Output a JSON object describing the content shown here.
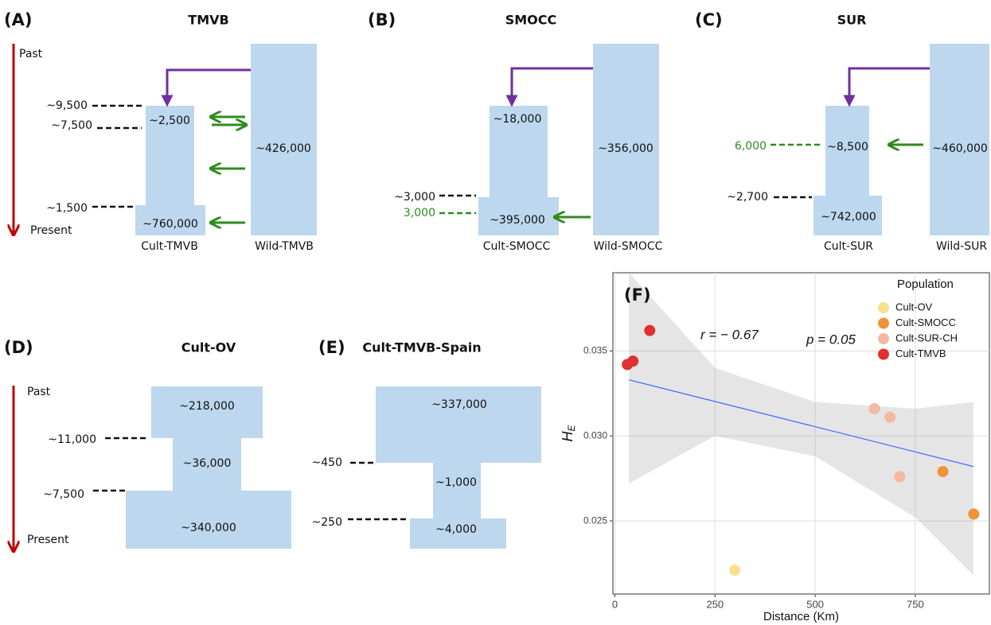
{
  "panels": [
    {
      "label": "(A)",
      "title": "TMVB",
      "time_labels": [
        "Past",
        "Present"
      ],
      "events": [
        "~9,500",
        "~7,500",
        "~1,500"
      ],
      "sizes": [
        "~2,500",
        "~760,000",
        "~426,000"
      ],
      "populations": [
        "Cult-TMVB",
        "Wild-TMVB"
      ]
    },
    {
      "label": "(B)",
      "title": "SMOCC",
      "events": [
        "~3,000",
        "3,000"
      ],
      "sizes": [
        "~18,000",
        "~395,000",
        "~356,000"
      ],
      "populations": [
        "Cult-SMOCC",
        "Wild-SMOCC"
      ]
    },
    {
      "label": "(C)",
      "title": "SUR",
      "events": [
        "6,000",
        "~2,700"
      ],
      "sizes": [
        "~8,500",
        "~742,000",
        "~460,000"
      ],
      "populations": [
        "Cult-SUR",
        "Wild-SUR"
      ]
    },
    {
      "label": "(D)",
      "title": "Cult-OV",
      "time_labels": [
        "Past",
        "Present"
      ],
      "events": [
        "~11,000",
        "~7,500"
      ],
      "sizes": [
        "~218,000",
        "~36,000",
        "~340,000"
      ]
    },
    {
      "label": "(E)",
      "title": "Cult-TMVB-Spain",
      "events": [
        "~450",
        "~250"
      ],
      "sizes": [
        "~337,000",
        "~1,000",
        "~4,000"
      ]
    }
  ],
  "chart_data": {
    "type": "scatter",
    "label": "(F)",
    "x_label": "Distance (Km)",
    "y_label": "H",
    "y_label_sub": "E",
    "annotations": [
      "r = − 0.67",
      "p = 0.05"
    ],
    "legend_title": "Population",
    "legend": "top-right",
    "grid": true,
    "xlim": [
      -5,
      935
    ],
    "ylim": [
      0.0207,
      0.0396
    ],
    "xticks": [
      0,
      250,
      500,
      750
    ],
    "yticks": [
      0.025,
      {
        "value": 0.03,
        "label": "0.030"
      },
      0.035
    ],
    "series": [
      {
        "name": "Cult-OV",
        "color": "#f9df8f",
        "x": [
          299
        ],
        "y": [
          0.0221
        ]
      },
      {
        "name": "Cult-SMOCC",
        "color": "#f0923a",
        "x": [
          819,
          896
        ],
        "y": [
          0.0279,
          0.0254
        ]
      },
      {
        "name": "Cult-SUR-CH",
        "color": "#f5b8a0",
        "x": [
          648,
          687,
          711
        ],
        "y": [
          0.0316,
          0.0311,
          0.0276
        ]
      },
      {
        "name": "Cult-TMVB",
        "color": "#e03030",
        "x": [
          87,
          45,
          31
        ],
        "y": [
          0.0362,
          0.0344,
          0.0342
        ]
      }
    ],
    "fit": {
      "color": "#3366ff",
      "x": [
        35,
        895
      ],
      "y": [
        0.0333,
        0.0282
      ]
    },
    "band": {
      "x": [
        35,
        250,
        500,
        750,
        895
      ],
      "upper": [
        0.0396,
        0.034,
        0.032,
        0.0316,
        0.032
      ],
      "lower": [
        0.0272,
        0.03,
        0.0288,
        0.0252,
        0.0218
      ]
    }
  }
}
